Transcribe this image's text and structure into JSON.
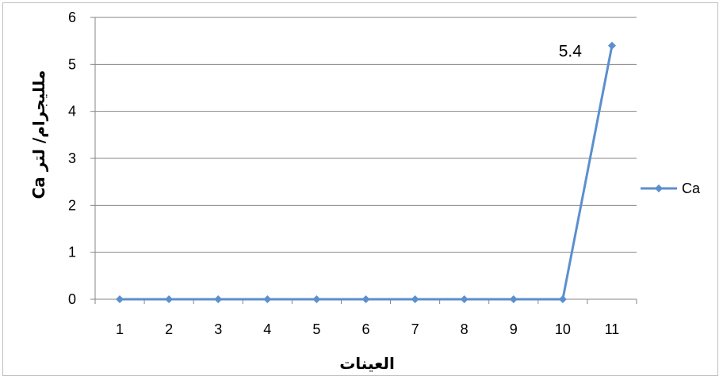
{
  "chart_data": {
    "type": "line",
    "title": "",
    "xlabel": "العينات",
    "ylabel": "Ca  ملليجرام/ لتر",
    "categories": [
      "1",
      "2",
      "3",
      "4",
      "5",
      "6",
      "7",
      "8",
      "9",
      "10",
      "11"
    ],
    "series": [
      {
        "name": "Ca",
        "values": [
          0,
          0,
          0,
          0,
          0,
          0,
          0,
          0,
          0,
          0,
          5.4
        ],
        "color": "#5b8fcf"
      }
    ],
    "ylim": [
      0,
      6
    ],
    "yticks": [
      "0",
      "1",
      "2",
      "3",
      "4",
      "5",
      "6"
    ],
    "grid": "horizontal",
    "legend_position": "right",
    "data_labels": [
      {
        "category": "11",
        "text": "5.4"
      }
    ],
    "marker": "diamond"
  }
}
